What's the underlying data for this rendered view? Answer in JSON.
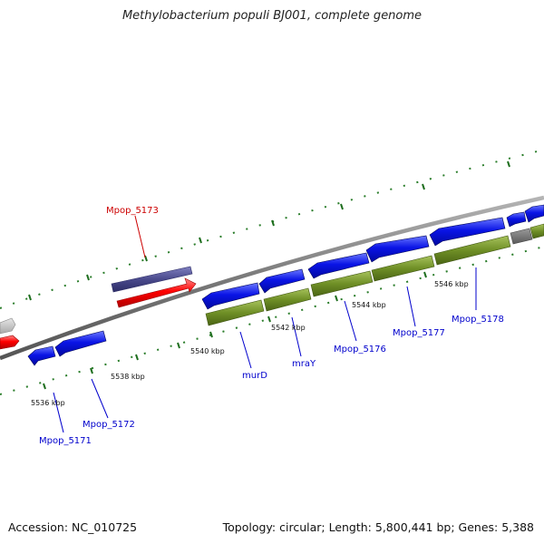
{
  "title": "Methylobacterium populi BJ001, complete genome",
  "footer": {
    "accession": "Accession: NC_010725",
    "summary": "Topology: circular; Length: 5,800,441 bp; Genes: 5,388"
  },
  "scale_labels": [
    "5536 kbp",
    "5538 kbp",
    "5540 kbp",
    "5542 kbp",
    "5544 kbp",
    "5546 kbp"
  ],
  "gene_labels": [
    {
      "text": "Mpop_5173",
      "color": "#cc0000"
    },
    {
      "text": "Mpop_5171",
      "color": "#0000cc"
    },
    {
      "text": "Mpop_5172",
      "color": "#0000cc"
    },
    {
      "text": "murD",
      "color": "#0000cc"
    },
    {
      "text": "mraY",
      "color": "#0000cc"
    },
    {
      "text": "Mpop_5176",
      "color": "#0000cc"
    },
    {
      "text": "Mpop_5177",
      "color": "#0000cc"
    },
    {
      "text": "Mpop_5178",
      "color": "#0000cc"
    }
  ],
  "colors": {
    "backbone": "#8a8a8a",
    "cds_forward": "#0a14e6",
    "rna": "#ff0000",
    "gene_olive": "#6f8f26",
    "gene_purple": "#4a4a8c",
    "gene_grey": "#bdbdbd",
    "tick_green": "#2a7d2a"
  },
  "icons": [
    "map-backbone",
    "gene-arrow"
  ]
}
